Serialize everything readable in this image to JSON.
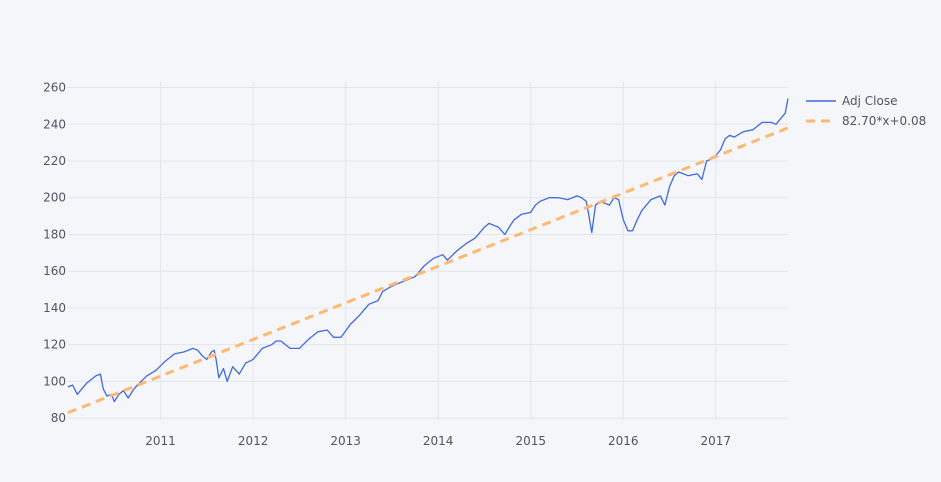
{
  "chart_data": {
    "type": "line",
    "title": "",
    "xlabel": "",
    "ylabel": "",
    "xlim": [
      2010.0,
      2017.78
    ],
    "ylim": [
      79,
      263
    ],
    "grid": true,
    "legend_placement": "top-right",
    "x_ticks": [
      "2011",
      "2012",
      "2013",
      "2014",
      "2015",
      "2016",
      "2017"
    ],
    "y_ticks": [
      80,
      100,
      120,
      140,
      160,
      180,
      200,
      220,
      240,
      260
    ],
    "colors": {
      "background": "#f5f6f9",
      "grid": "#e1e5ed",
      "axis_text": "#4d5663"
    },
    "series": [
      {
        "name": "Adj Close",
        "style": "solid",
        "color": "#4169e1",
        "x": [
          2010.0,
          2010.05,
          2010.1,
          2010.15,
          2010.2,
          2010.25,
          2010.3,
          2010.35,
          2010.38,
          2010.42,
          2010.47,
          2010.5,
          2010.55,
          2010.6,
          2010.65,
          2010.7,
          2010.75,
          2010.85,
          2010.95,
          2011.05,
          2011.15,
          2011.25,
          2011.35,
          2011.4,
          2011.45,
          2011.5,
          2011.55,
          2011.58,
          2011.6,
          2011.63,
          2011.68,
          2011.72,
          2011.78,
          2011.85,
          2011.92,
          2012.0,
          2012.1,
          2012.2,
          2012.25,
          2012.3,
          2012.4,
          2012.5,
          2012.6,
          2012.7,
          2012.8,
          2012.87,
          2012.95,
          2013.05,
          2013.15,
          2013.25,
          2013.35,
          2013.4,
          2013.47,
          2013.55,
          2013.65,
          2013.75,
          2013.85,
          2013.95,
          2014.05,
          2014.1,
          2014.2,
          2014.3,
          2014.4,
          2014.5,
          2014.55,
          2014.6,
          2014.65,
          2014.72,
          2014.78,
          2014.82,
          2014.9,
          2015.0,
          2015.05,
          2015.1,
          2015.2,
          2015.3,
          2015.4,
          2015.5,
          2015.55,
          2015.6,
          2015.63,
          2015.66,
          2015.7,
          2015.75,
          2015.8,
          2015.85,
          2015.9,
          2015.95,
          2016.0,
          2016.05,
          2016.1,
          2016.15,
          2016.2,
          2016.3,
          2016.4,
          2016.45,
          2016.5,
          2016.55,
          2016.6,
          2016.7,
          2016.8,
          2016.85,
          2016.9,
          2016.95,
          2017.0,
          2017.05,
          2017.1,
          2017.15,
          2017.2,
          2017.3,
          2017.4,
          2017.5,
          2017.6,
          2017.65,
          2017.7,
          2017.75,
          2017.78
        ],
        "y": [
          97,
          98,
          93,
          96,
          99,
          101,
          103,
          104,
          96,
          92,
          93,
          89,
          93,
          95,
          91,
          95,
          98,
          103,
          106,
          111,
          115,
          116,
          118,
          117,
          114,
          112,
          116,
          117,
          112,
          102,
          107,
          100,
          108,
          104,
          110,
          112,
          118,
          120,
          122,
          122,
          118,
          118,
          123,
          127,
          128,
          124,
          124,
          131,
          136,
          142,
          144,
          149,
          151,
          153,
          155,
          157,
          163,
          167,
          169,
          166,
          171,
          175,
          178,
          184,
          186,
          185,
          184,
          180,
          185,
          188,
          191,
          192,
          196,
          198,
          200,
          200,
          199,
          201,
          200,
          198,
          190,
          181,
          196,
          198,
          197,
          196,
          200,
          199,
          188,
          182,
          182,
          188,
          193,
          199,
          201,
          196,
          206,
          212,
          214,
          212,
          213,
          210,
          220,
          221,
          223,
          226,
          232,
          234,
          233,
          236,
          237,
          241,
          241,
          240,
          243,
          246,
          254
        ]
      },
      {
        "name": "82.70*x+0.08",
        "style": "dashed",
        "color": "#ffb870",
        "x": [
          2010.0,
          2017.78
        ],
        "y": [
          83.0,
          238.0
        ]
      }
    ]
  }
}
